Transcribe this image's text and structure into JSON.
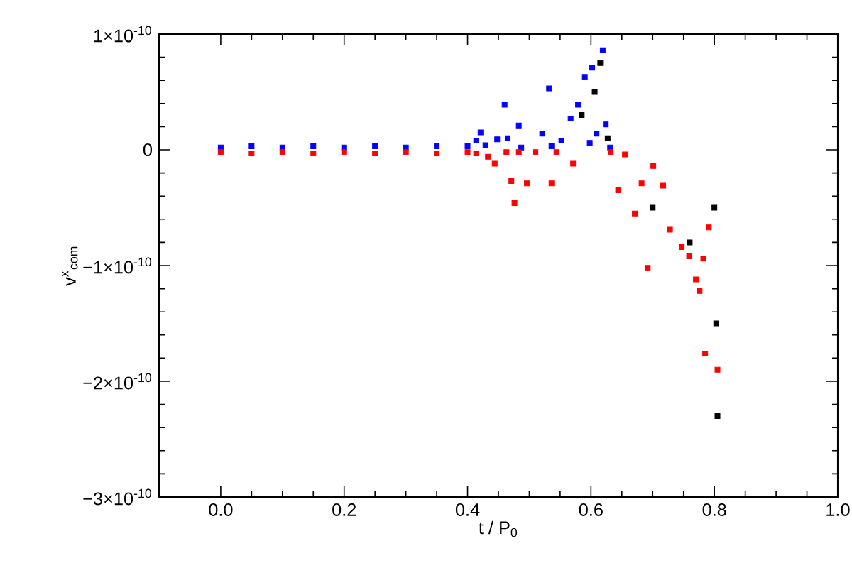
{
  "chart_data": {
    "type": "scatter",
    "xlabel": "t / P$_{0}$",
    "ylabel": "v$^{x}$$_{com}$",
    "xlim": [
      -0.1,
      1.0
    ],
    "ylim": [
      -3e-10,
      1e-10
    ],
    "xticks": [
      {
        "value": 0,
        "label": "0.0"
      },
      {
        "value": 0.2,
        "label": "0.2"
      },
      {
        "value": 0.4,
        "label": "0.4"
      },
      {
        "value": 0.6,
        "label": "0.6"
      },
      {
        "value": 0.8,
        "label": "0.8"
      },
      {
        "value": 1.0,
        "label": "1.0"
      }
    ],
    "yticks": [
      {
        "value": 1e-10,
        "label": "1×10$^{-10}$"
      },
      {
        "value": 0,
        "label": "0"
      },
      {
        "value": -1e-10,
        "label": "−1×10$^{-10}$"
      },
      {
        "value": -2e-10,
        "label": "−2×10$^{-10}$"
      },
      {
        "value": -3e-10,
        "label": "−3×10$^{-10}$"
      }
    ],
    "marker": "square",
    "series": [
      {
        "color": "#0000ff",
        "x": [
          0,
          0.05,
          0.1,
          0.15,
          0.2,
          0.25,
          0.3,
          0.35,
          0.4,
          0.414,
          0.421,
          0.429,
          0.448,
          0.46,
          0.465,
          0.483,
          0.487,
          0.521,
          0.532,
          0.536,
          0.552,
          0.567,
          0.579,
          0.59,
          0.598,
          0.602,
          0.609,
          0.619,
          0.624,
          0.631
        ],
        "values": [
          2e-12,
          3e-12,
          2e-12,
          3e-12,
          2e-12,
          3e-12,
          2e-12,
          3e-12,
          3e-12,
          8e-12,
          1.5e-11,
          4e-12,
          9e-12,
          3.9e-11,
          1e-11,
          2.1e-11,
          2e-12,
          1.4e-11,
          5.3e-11,
          3e-12,
          8e-12,
          2.7e-11,
          3.9e-11,
          6.3e-11,
          6e-12,
          7.1e-11,
          1.4e-11,
          8.6e-11,
          2.2e-11,
          2e-12
        ]
      },
      {
        "color": "#ff0000",
        "x": [
          0,
          0.05,
          0.1,
          0.15,
          0.2,
          0.25,
          0.3,
          0.35,
          0.4,
          0.414,
          0.433,
          0.444,
          0.463,
          0.471,
          0.476,
          0.483,
          0.496,
          0.51,
          0.536,
          0.544,
          0.571,
          0.632,
          0.644,
          0.655,
          0.671,
          0.682,
          0.692,
          0.701,
          0.717,
          0.728,
          0.747,
          0.759,
          0.77,
          0.776,
          0.782,
          0.785,
          0.791,
          0.805
        ],
        "values": [
          -2e-12,
          -3e-12,
          -2e-12,
          -3e-12,
          -2e-12,
          -3e-12,
          -2e-12,
          -3e-12,
          -2e-12,
          -3e-12,
          -6e-12,
          -1.2e-11,
          -2e-12,
          -2.7e-11,
          -4.6e-11,
          -2e-12,
          -2.9e-11,
          -2e-12,
          -2.9e-11,
          -2e-12,
          -1.2e-11,
          -2e-12,
          -3.5e-11,
          -4e-12,
          -5.5e-11,
          -2.9e-11,
          -1.02e-10,
          -1.4e-11,
          -3.1e-11,
          -6.9e-11,
          -8.4e-11,
          -9.2e-11,
          -1.12e-10,
          -1.22e-10,
          -9.4e-11,
          -1.76e-10,
          -6.7e-11,
          -1.9e-10
        ]
      },
      {
        "color": "#000000",
        "x": [
          0.585,
          0.606,
          0.615,
          0.627,
          0.7,
          0.76,
          0.8,
          0.803,
          0.805
        ],
        "values": [
          3e-11,
          5e-11,
          7.5e-11,
          1e-11,
          -5e-11,
          -8e-11,
          -5e-11,
          -1.5e-10,
          -2.3e-10
        ]
      }
    ]
  }
}
